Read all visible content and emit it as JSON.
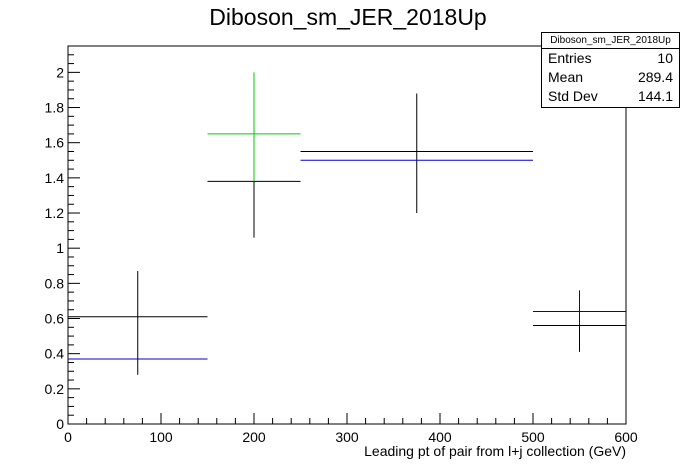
{
  "title": "Diboson_sm_JER_2018Up",
  "stats": {
    "name": "Diboson_sm_JER_2018Up",
    "rows": [
      {
        "label": "Entries",
        "value": "10"
      },
      {
        "label": "Mean",
        "value": "289.4"
      },
      {
        "label": "Std Dev",
        "value": "144.1"
      }
    ]
  },
  "chart_data": {
    "type": "scatter",
    "title": "Diboson_sm_JER_2018Up",
    "xlabel": "Leading pt of pair from l+j collection (GeV)",
    "ylabel": "",
    "xlim": [
      0,
      600
    ],
    "ylim": [
      0,
      2.15
    ],
    "x_ticks": [
      "0",
      "100",
      "200",
      "300",
      "400",
      "500",
      "600"
    ],
    "y_ticks": [
      "0",
      "0.2",
      "0.4",
      "0.6",
      "0.8",
      "1",
      "1.2",
      "1.4",
      "1.6",
      "1.8",
      "2"
    ],
    "grid": false,
    "legend": "stats box top-right",
    "series": [
      {
        "color": "#000000",
        "points": [
          {
            "xlow": 0,
            "xhigh": 150,
            "x": 75,
            "y": 0.61,
            "ylow": 0.28,
            "yhigh": 0.87
          },
          {
            "xlow": 150,
            "xhigh": 250,
            "x": 200,
            "y": 1.38,
            "ylow": 1.06,
            "yhigh": 1.71
          },
          {
            "xlow": 250,
            "xhigh": 500,
            "x": 375,
            "y": 1.55,
            "ylow": 1.2,
            "yhigh": 1.88
          },
          {
            "xlow": 500,
            "xhigh": 600,
            "x": 550,
            "y": 0.56,
            "ylow": 0.41,
            "yhigh": 0.7
          }
        ]
      },
      {
        "color": "#0000cc",
        "points": [
          {
            "xlow": 0,
            "xhigh": 150,
            "x": 75,
            "y": 0.37
          },
          {
            "xlow": 250,
            "xhigh": 500,
            "x": 375,
            "y": 1.5
          },
          {
            "xlow": 500,
            "xhigh": 600,
            "x": 550,
            "y": 0.64,
            "ylow": 0.56,
            "yhigh": 0.76
          }
        ]
      },
      {
        "color": "#00cc00",
        "points": [
          {
            "xlow": 150,
            "xhigh": 250,
            "x": 200,
            "y": 1.65,
            "ylow": 1.38,
            "yhigh": 2.0
          }
        ]
      }
    ]
  }
}
